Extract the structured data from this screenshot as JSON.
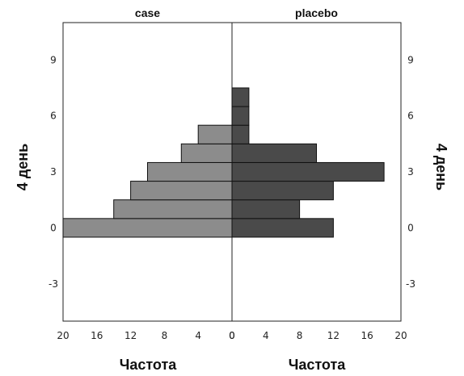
{
  "chart_data": {
    "type": "bar",
    "orientation": "horizontal",
    "layout": "back-to-back",
    "panels": [
      {
        "name": "case",
        "direction": "left",
        "color": "#8c8c8c",
        "bars": [
          {
            "y": 0,
            "value": 20
          },
          {
            "y": 1,
            "value": 14
          },
          {
            "y": 2,
            "value": 12
          },
          {
            "y": 3,
            "value": 10
          },
          {
            "y": 4,
            "value": 6
          },
          {
            "y": 5,
            "value": 4
          }
        ]
      },
      {
        "name": "placebo",
        "direction": "right",
        "color": "#4a4a4a",
        "bars": [
          {
            "y": 0,
            "value": 12
          },
          {
            "y": 1,
            "value": 8
          },
          {
            "y": 2,
            "value": 12
          },
          {
            "y": 3,
            "value": 18
          },
          {
            "y": 4,
            "value": 10
          },
          {
            "y": 5,
            "value": 2
          },
          {
            "y": 6,
            "value": 2
          },
          {
            "y": 7,
            "value": 2
          }
        ]
      }
    ],
    "ylabel": "4 день",
    "xlabel": "Частота",
    "ylim": [
      -5,
      11
    ],
    "yticks": [
      "9",
      "6",
      "3",
      "0",
      "-3"
    ],
    "ytick_values": [
      9,
      6,
      3,
      0,
      -3
    ],
    "xlim": [
      0,
      20
    ],
    "xticks_left": [
      "20",
      "16",
      "12",
      "8",
      "4",
      "0"
    ],
    "xticks_left_values": [
      20,
      16,
      12,
      8,
      4,
      0
    ],
    "xticks_right": [
      "0",
      "4",
      "8",
      "12",
      "16",
      "20"
    ],
    "xticks_right_values": [
      0,
      4,
      8,
      12,
      16,
      20
    ],
    "grid": false
  }
}
